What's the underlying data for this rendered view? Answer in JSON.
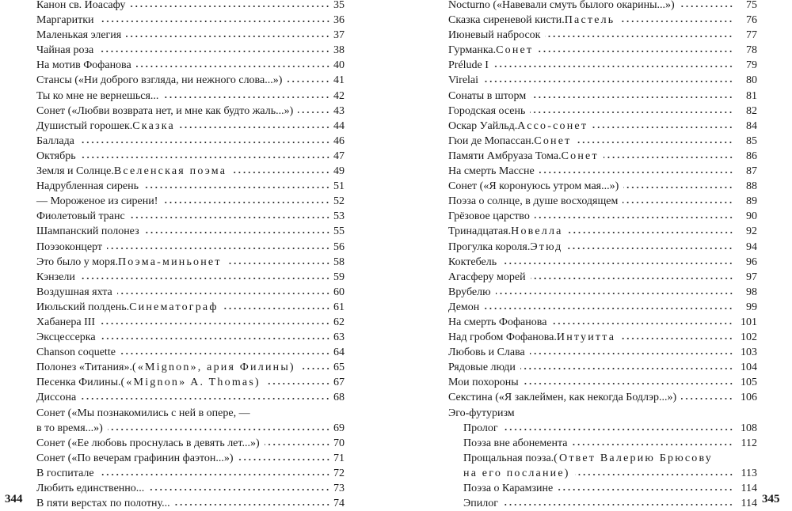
{
  "left_page": {
    "folio": "344",
    "entries": [
      {
        "t": "Канон св. Иоасафу",
        "p": "35"
      },
      {
        "t": "Маргаритки",
        "p": "36"
      },
      {
        "t": "Маленькая элегия",
        "p": "37"
      },
      {
        "t": "Чайная роза",
        "p": "38"
      },
      {
        "t": "На мотив Фофанова",
        "p": "40"
      },
      {
        "t": "Стансы («Ни доброго взгляда, ни нежного слова...»)",
        "p": "41"
      },
      {
        "t": "Ты ко мне не вернешься...",
        "p": "42"
      },
      {
        "t": "Сонет («Любви возврата нет, и мне как будто жаль...»)",
        "p": "43"
      },
      {
        "t": "Душистый горошек. ",
        "s": "Сказка",
        "p": "44"
      },
      {
        "t": "Баллада",
        "p": "46"
      },
      {
        "t": "Октябрь",
        "p": "47"
      },
      {
        "t": "Земля и Солнце. ",
        "s": "Вселенская поэма",
        "p": "49"
      },
      {
        "t": "Надрубленная сирень",
        "p": "51"
      },
      {
        "t": "—  Мороженое из сирени!",
        "p": "52"
      },
      {
        "t": "Фиолетовый транс",
        "p": "53"
      },
      {
        "t": "Шампанский полонез",
        "p": "55"
      },
      {
        "t": "Поэзоконцерт",
        "p": "56"
      },
      {
        "t": "Это было у моря. ",
        "s": "Поэма-миньонет",
        "p": "58"
      },
      {
        "t": "Кэнзели",
        "p": "59"
      },
      {
        "t": "Воздушная яхта",
        "p": "60"
      },
      {
        "t": "Июльский полдень. ",
        "s": "Синематограф",
        "p": "61"
      },
      {
        "t": "Хабанера III",
        "p": "62"
      },
      {
        "t": "Эксцессерка",
        "p": "63"
      },
      {
        "t": "Chanson coquette",
        "p": "64"
      },
      {
        "t": "Полонез «Титания». ",
        "s": "(«Mignon», ария Филины)",
        "p": "65"
      },
      {
        "t": "Песенка Филины. ",
        "s": "(«Mignon» A. Thomas)",
        "p": "67"
      },
      {
        "t": "Диссона",
        "p": "68"
      },
      {
        "t": "Сонет («Мы познакомились с ней в опере, —",
        "t2": "в то время...»)",
        "p": "69"
      },
      {
        "t": "Сонет («Ее любовь проснулась в девять лет...»)",
        "p": "70"
      },
      {
        "t": "Сонет («По вечерам графинин фаэтон...»)",
        "p": "71"
      },
      {
        "t": "В госпитале",
        "p": "72"
      },
      {
        "t": "Любить единственно...",
        "p": "73"
      },
      {
        "t": "В пяти верстах по полотну...",
        "p": "74"
      }
    ]
  },
  "right_page": {
    "folio": "345",
    "entries": [
      {
        "t": "Nocturno («Навевали смуть былого окарины...»)",
        "p": "75"
      },
      {
        "t": "Сказка сиреневой кисти. ",
        "s": "Пастель",
        "p": "76"
      },
      {
        "t": "Июневый набросок",
        "p": "77"
      },
      {
        "t": "Гурманка. ",
        "s": "Сонет",
        "p": "78"
      },
      {
        "t": "Prélude I",
        "p": "79"
      },
      {
        "t": "Virelai",
        "p": "80"
      },
      {
        "t": "Сонаты в шторм",
        "p": "81"
      },
      {
        "t": "Городская осень",
        "p": "82"
      },
      {
        "t": "Оскар Уайльд. ",
        "s": "Ассо-сонет",
        "p": "84"
      },
      {
        "t": "Гюи де Мопассан. ",
        "s": "Сонет",
        "p": "85"
      },
      {
        "t": "Памяти Амбруаза Тома. ",
        "s": "Сонет",
        "p": "86"
      },
      {
        "t": "На смерть Массне",
        "p": "87"
      },
      {
        "t": "Сонет («Я коронуюсь утром мая...»)",
        "p": "88"
      },
      {
        "t": "Поэза о солнце, в душе восходящем",
        "p": "89"
      },
      {
        "t": "Грёзовое царство",
        "p": "90"
      },
      {
        "t": "Тринадцатая. ",
        "s": "Новелла",
        "p": "92"
      },
      {
        "t": "Прогулка короля. ",
        "s": "Этюд",
        "p": "94"
      },
      {
        "t": "Коктебель",
        "p": "96"
      },
      {
        "t": "Агасферу морей",
        "p": "97"
      },
      {
        "t": "Врубелю",
        "p": "98"
      },
      {
        "t": "Демон",
        "p": "99"
      },
      {
        "t": "На смерть Фофанова",
        "p": "101"
      },
      {
        "t": "Над гробом Фофанова. ",
        "s": "Интуитта",
        "p": "102"
      },
      {
        "t": "Любовь и Слава",
        "p": "103"
      },
      {
        "t": "Рядовые люди",
        "p": "104"
      },
      {
        "t": "Мои похороны",
        "p": "105"
      },
      {
        "t": "Секстина («Я заклеймен, как некогда Бодлэр...»)",
        "p": "106"
      },
      {
        "t": "Эго-футуризм",
        "heading": true
      },
      {
        "t": "Пролог",
        "p": "108",
        "level": 2
      },
      {
        "t": "Поэза вне абонемента",
        "p": "112",
        "level": 2
      },
      {
        "t": "Прощальная поэза. ",
        "s": "(Ответ Валерию Брюсову",
        "s2": "на его послание)",
        "p": "113",
        "level": 2
      },
      {
        "t": "Поэза о Карамзине",
        "p": "114",
        "level": 2
      },
      {
        "t": "Эпилог",
        "p": "114",
        "level": 2
      }
    ]
  }
}
